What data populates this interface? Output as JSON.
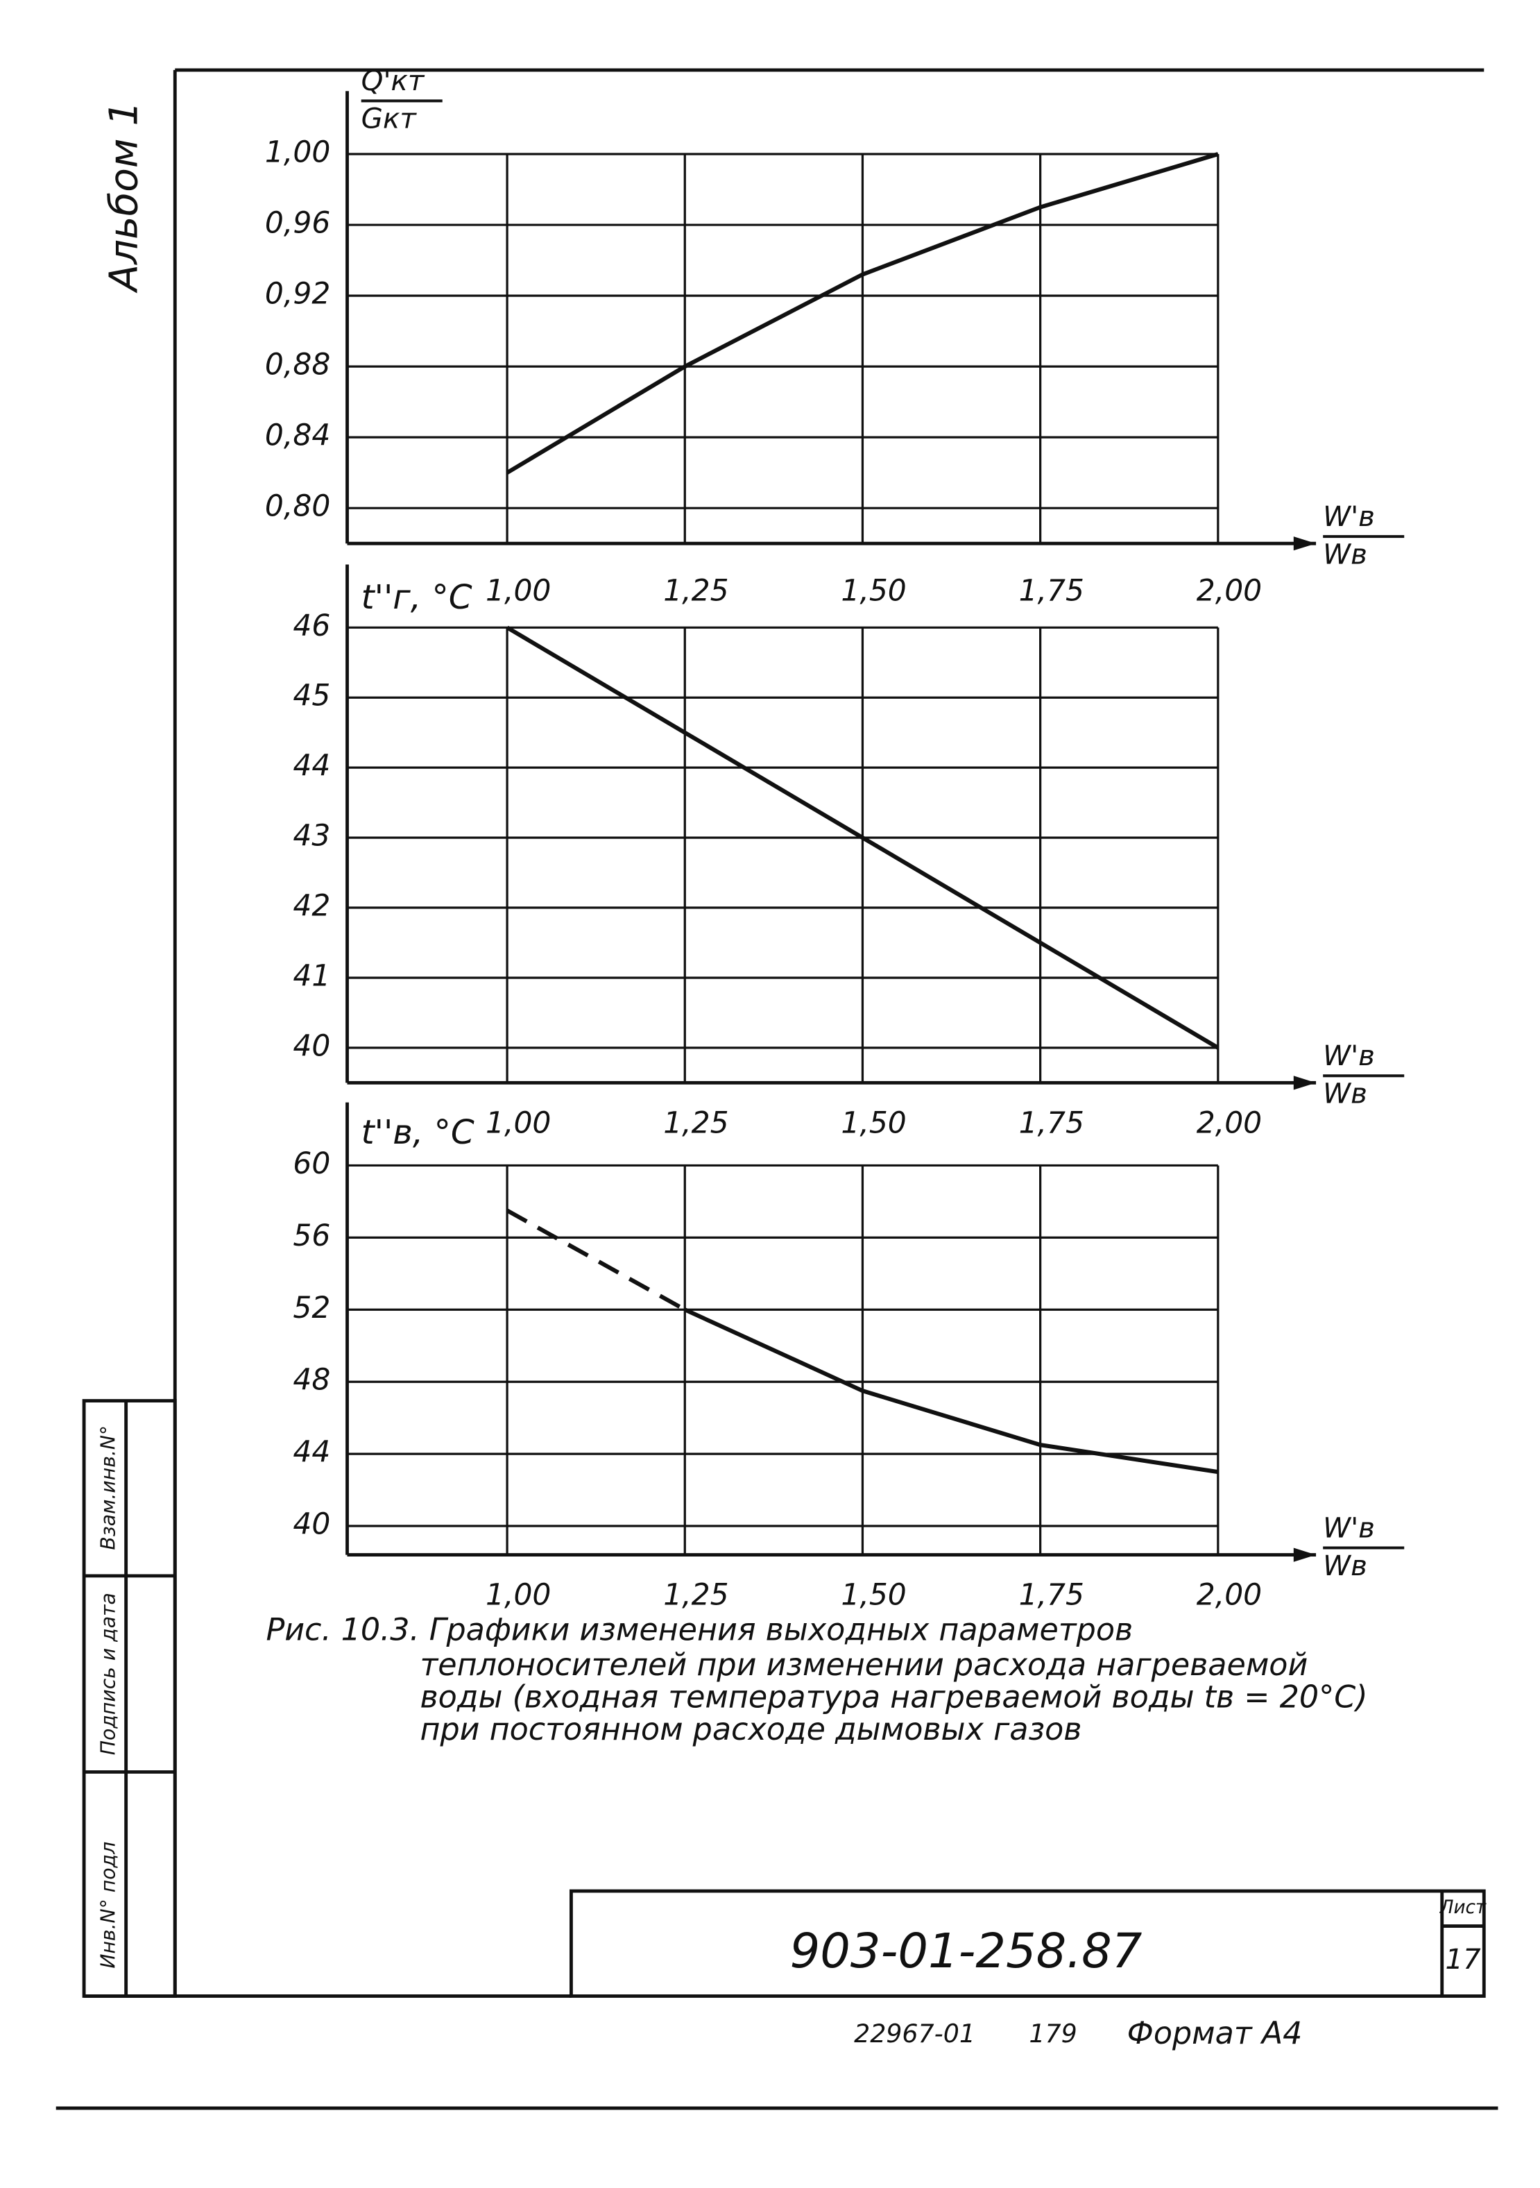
{
  "document": {
    "album": "Альбом 1",
    "caption": [
      "Рис. 10.3. Графики изменения выходных параметров",
      "теплоносителей при изменении расхода нагреваемой",
      "воды (входная температура нагреваемой воды tв = 20°C)",
      "при постоянном расходе дымовых газов"
    ],
    "drawing_number": "903-01-258.87",
    "footer": [
      "22967-01",
      "179",
      "Формат А4"
    ],
    "sheet_label": "Лист",
    "sheet_number": "17",
    "side_labels": [
      "Инв.N° подл",
      "Подпись и дата",
      "Взам.инв.N°"
    ]
  },
  "chart_data": [
    {
      "type": "line",
      "ylabel": {
        "numerator": "Q'кт",
        "denominator": "Gкт"
      },
      "xlabel": {
        "numerator": "W'в",
        "denominator": "Wв"
      },
      "x": [
        1.0,
        1.25,
        1.5,
        1.75,
        2.0
      ],
      "series": [
        {
          "color": "#111111",
          "line_style": "solid",
          "values": [
            0.82,
            0.88,
            0.932,
            0.97,
            1.0
          ]
        }
      ],
      "xlim": [
        0.775,
        2.0
      ],
      "ylim": [
        0.78,
        1.0
      ],
      "xticks": [
        {
          "value": 1.0,
          "label": "1,00"
        },
        {
          "value": 1.25,
          "label": "1,25"
        },
        {
          "value": 1.5,
          "label": "1,50"
        },
        {
          "value": 1.75,
          "label": "1,75"
        },
        {
          "value": 2.0,
          "label": "2,00"
        }
      ],
      "yticks": [
        {
          "value": 0.8,
          "label": "0,80"
        },
        {
          "value": 0.84,
          "label": "0,84"
        },
        {
          "value": 0.88,
          "label": "0,88"
        },
        {
          "value": 0.92,
          "label": "0,92"
        },
        {
          "value": 0.96,
          "label": "0,96"
        },
        {
          "value": 1.0,
          "label": "1,00"
        }
      ],
      "grid": true
    },
    {
      "type": "line",
      "ylabel": "t''г, °C",
      "xlabel": {
        "numerator": "W'в",
        "denominator": "Wв"
      },
      "x": [
        1.0,
        1.25,
        1.5,
        1.75,
        2.0
      ],
      "series": [
        {
          "color": "#111111",
          "line_style": "solid",
          "values": [
            46,
            44.5,
            43,
            41.5,
            40
          ]
        }
      ],
      "xlim": [
        0.775,
        2.0
      ],
      "ylim": [
        39.5,
        46
      ],
      "xticks": [
        {
          "value": 1.0,
          "label": "1,00"
        },
        {
          "value": 1.25,
          "label": "1,25"
        },
        {
          "value": 1.5,
          "label": "1,50"
        },
        {
          "value": 1.75,
          "label": "1,75"
        },
        {
          "value": 2.0,
          "label": "2,00"
        }
      ],
      "yticks": [
        40,
        41,
        42,
        43,
        44,
        45,
        46
      ],
      "grid": true
    },
    {
      "type": "line",
      "ylabel": "t''в, °C",
      "xlabel": {
        "numerator": "W'в",
        "denominator": "Wв"
      },
      "x": [
        1.0,
        1.25,
        1.5,
        1.75,
        2.0
      ],
      "series": [
        {
          "color": "#111111",
          "line_style": "dashed",
          "values": [
            57.5,
            52,
            null,
            null,
            null
          ]
        },
        {
          "color": "#111111",
          "line_style": "solid",
          "values": [
            null,
            52,
            47.5,
            44.5,
            43
          ]
        }
      ],
      "xlim": [
        0.775,
        2.0
      ],
      "ylim": [
        38.4,
        60
      ],
      "xticks": [
        {
          "value": 1.0,
          "label": "1,00"
        },
        {
          "value": 1.25,
          "label": "1,25"
        },
        {
          "value": 1.5,
          "label": "1,50"
        },
        {
          "value": 1.75,
          "label": "1,75"
        },
        {
          "value": 2.0,
          "label": "2,00"
        }
      ],
      "yticks": [
        40,
        44,
        48,
        52,
        56,
        60
      ],
      "grid": true
    }
  ]
}
